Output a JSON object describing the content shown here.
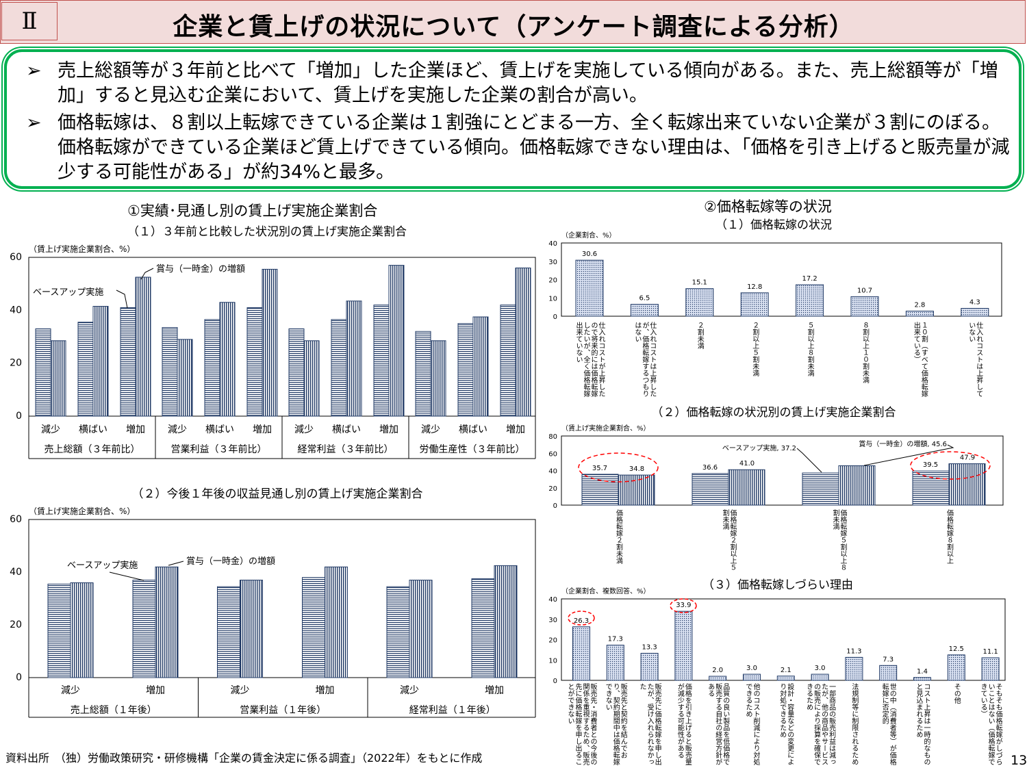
{
  "header": {
    "section": "Ⅱ",
    "title": "企業と賃上げの状況について（アンケート調査による分析）"
  },
  "summary": {
    "bullet": "➢",
    "points": [
      "売上総額等が３年前と比べて「増加」した企業ほど、賃上げを実施している傾向がある。また、売上総額等が「増加」すると見込む企業において、賃上げを実施した企業の割合が高い。",
      "価格転嫁は、８割以上転嫁できている企業は１割強にとどまる一方、全く転嫁出来ていない企業が３割にのぼる。価格転嫁ができている企業ほど賃上げできている傾向。価格転嫁できない理由は、「価格を引き上げると販売量が減少する可能性がある」が約34%と最多。"
    ]
  },
  "left_section_title": "①実績･見通し別の賃上げ実施企業割合",
  "right_section_title": "②価格転嫁等の状況",
  "colors": {
    "accent_green": "#00b050",
    "header_bg": "#f2dcdb",
    "bar_stroke": "#1f3864",
    "highlight": "#ff0000"
  },
  "chart_data": [
    {
      "id": "c1",
      "type": "bar",
      "title": "（１）３年前と比較した状況別の賃上げ実施企業割合",
      "ylabel": "（賃上げ実施企業割合、%）",
      "ylim": [
        0,
        60
      ],
      "yticks": [
        0,
        20,
        40,
        60
      ],
      "groups": [
        {
          "name": "売上総額（３年前比）",
          "categories": [
            "減少",
            "横ばい",
            "増加"
          ]
        },
        {
          "name": "営業利益（３年前比）",
          "categories": [
            "減少",
            "横ばい",
            "増加"
          ]
        },
        {
          "name": "経常利益（３年前比）",
          "categories": [
            "減少",
            "横ばい",
            "増加"
          ]
        },
        {
          "name": "労働生産性（３年前比）",
          "categories": [
            "減少",
            "横ばい",
            "増加"
          ]
        }
      ],
      "series": [
        {
          "name": "ベースアップ実施",
          "values": [
            33,
            35.5,
            41,
            33.5,
            36.5,
            41,
            33,
            36.5,
            42,
            32,
            35,
            42
          ]
        },
        {
          "name": "賞与（一時金）の増額",
          "values": [
            28.5,
            41.5,
            52.5,
            29,
            43,
            55.5,
            28.5,
            43.5,
            57,
            28.5,
            37.5,
            56
          ]
        }
      ]
    },
    {
      "id": "c2",
      "type": "bar",
      "title": "（２）今後１年後の収益見通し別の賃上げ実施企業割合",
      "ylabel": "（賃上げ実施企業割合、%）",
      "ylim": [
        0,
        60
      ],
      "yticks": [
        0,
        20,
        40,
        60
      ],
      "groups": [
        {
          "name": "売上総額（１年後）",
          "categories": [
            "減少",
            "増加"
          ]
        },
        {
          "name": "営業利益（１年後）",
          "categories": [
            "減少",
            "増加"
          ]
        },
        {
          "name": "経常利益（１年後）",
          "categories": [
            "減少",
            "増加"
          ]
        }
      ],
      "series": [
        {
          "name": "ベースアップ実施",
          "values": [
            35.5,
            37,
            34.5,
            38,
            34.5,
            37.5
          ]
        },
        {
          "name": "賞与（一時金）の増額",
          "values": [
            36,
            42,
            37,
            42,
            37,
            42.5
          ]
        }
      ]
    },
    {
      "id": "r1",
      "type": "bar",
      "title": "（１）価格転嫁の状況",
      "ylabel": "（企業割合、%）",
      "ylim": [
        0,
        40
      ],
      "yticks": [
        0,
        10,
        20,
        30,
        40
      ],
      "categories": [
        "仕入れコストが上昇したので将来的には価格転嫁したいが、全く価格転嫁出来ていない",
        "仕入れコストは上昇したが、価格転嫁するつもりはない",
        "２割未満",
        "２割以上５割未満",
        "５割以上８割未満",
        "８割以上１０割未満",
        "１０割（すべて価格転嫁出来ている）",
        "仕入れコストは上昇していない"
      ],
      "values": [
        30.6,
        6.5,
        15.1,
        12.8,
        17.2,
        10.7,
        2.8,
        4.3
      ],
      "labels": [
        "30.6",
        "6.5",
        "15.1",
        "12.8",
        "17.2",
        "10.7",
        "2.8",
        "4.3"
      ]
    },
    {
      "id": "r2",
      "type": "bar",
      "title": "（２）価格転嫁の状況別の賃上げ実施企業割合",
      "ylabel": "（賃上げ実施企業割合、%）",
      "ylim": [
        0,
        80
      ],
      "yticks": [
        0,
        20,
        40,
        60,
        80
      ],
      "categories": [
        "価格転嫁２割未満",
        "価格転嫁２割以上５割未満",
        "価格転嫁５割以上８割未満",
        "価格転嫁８割以上"
      ],
      "series": [
        {
          "name": "ベースアップ実施",
          "values": [
            35.7,
            36.6,
            37.2,
            39.5
          ],
          "labels": [
            "35.7",
            "36.6",
            "",
            "39.5"
          ]
        },
        {
          "name": "賞与（一時金）の増額",
          "values": [
            34.8,
            41.0,
            45.6,
            47.9
          ],
          "labels": [
            "34.8",
            "41.0",
            "",
            "47.9"
          ]
        }
      ],
      "annotations": [
        "ベースアップ実施, 37.2",
        "賞与（一時金）の増額, 45.6"
      ]
    },
    {
      "id": "r3",
      "type": "bar",
      "title": "（３）価格転嫁しづらい理由",
      "ylabel": "（企業割合、複数回答、%）",
      "ylim": [
        0,
        40
      ],
      "yticks": [
        0,
        10,
        20,
        30,
        40
      ],
      "categories": [
        "販売先・消費者との今後の関係を重視するため、販売先に価格転嫁を申し出ることができない",
        "販売先と契約を結んでおり、契約期間中は価格転嫁できない",
        "販売先に価格転嫁を申し出たが、受け入れられなかった",
        "価格を引き上げると販売量が減少する可能性がある",
        "品質の良い製品を低価格で販売する自社の経営方針がある",
        "他のコスト削減により対処できるため",
        "設計・容量などの変更により対処できるため",
        "一部商品の販売利益は減ったが、他の商品やサービスの販売により採算を確保できるため",
        "法規制等に制限されるため",
        "世の中（消費者等）が価格転嫁に否定的",
        "コスト上昇は一時的なものと見込まれるため",
        "その他",
        "そもそも価格転嫁がしづらいことはない（価格転嫁できている）"
      ],
      "values": [
        26.3,
        17.3,
        13.3,
        33.9,
        2.0,
        3.0,
        2.1,
        3.0,
        11.3,
        7.3,
        1.4,
        12.5,
        11.1
      ],
      "labels": [
        "26.3",
        "17.3",
        "13.3",
        "33.9",
        "2.0",
        "3.0",
        "2.1",
        "3.0",
        "11.3",
        "7.3",
        "1.4",
        "12.5",
        "11.1"
      ]
    }
  ],
  "footer": {
    "source": "資料出所　（独）労働政策研究・研修機構「企業の賃金決定に係る調査」（2022年）をもとに作成",
    "page": "13"
  }
}
